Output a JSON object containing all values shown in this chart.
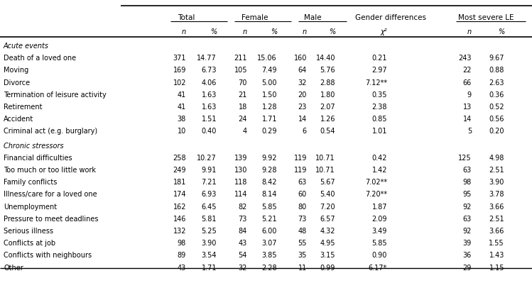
{
  "section1_label": "Acute events",
  "section2_label": "Chronic stressors",
  "group_headers": [
    "Total",
    "Female",
    "Male",
    "Gender differences",
    "Most severe LE"
  ],
  "sub_headers": [
    "n",
    "%",
    "n",
    "%",
    "n",
    "%",
    "χ²",
    "n",
    "%"
  ],
  "rows": [
    [
      "Death of a loved one",
      "371",
      "14.77",
      "211",
      "15.06",
      "160",
      "14.40",
      "0.21",
      "243",
      "9.67"
    ],
    [
      "Moving",
      "169",
      "6.73",
      "105",
      "7.49",
      "64",
      "5.76",
      "2.97",
      "22",
      "0.88"
    ],
    [
      "Divorce",
      "102",
      "4.06",
      "70",
      "5.00",
      "32",
      "2.88",
      "7.12**",
      "66",
      "2.63"
    ],
    [
      "Termination of leisure activity",
      "41",
      "1.63",
      "21",
      "1.50",
      "20",
      "1.80",
      "0.35",
      "9",
      "0.36"
    ],
    [
      "Retirement",
      "41",
      "1.63",
      "18",
      "1.28",
      "23",
      "2.07",
      "2.38",
      "13",
      "0.52"
    ],
    [
      "Accident",
      "38",
      "1.51",
      "24",
      "1.71",
      "14",
      "1.26",
      "0.85",
      "14",
      "0.56"
    ],
    [
      "Criminal act (e.g. burglary)",
      "10",
      "0.40",
      "4",
      "0.29",
      "6",
      "0.54",
      "1.01",
      "5",
      "0.20"
    ]
  ],
  "rows2": [
    [
      "Financial difficulties",
      "258",
      "10.27",
      "139",
      "9.92",
      "119",
      "10.71",
      "0.42",
      "125",
      "4.98"
    ],
    [
      "Too much or too little work",
      "249",
      "9.91",
      "130",
      "9.28",
      "119",
      "10.71",
      "1.42",
      "63",
      "2.51"
    ],
    [
      "Family conflicts",
      "181",
      "7.21",
      "118",
      "8.42",
      "63",
      "5.67",
      "7.02**",
      "98",
      "3.90"
    ],
    [
      "Illness/care for a loved one",
      "174",
      "6.93",
      "114",
      "8.14",
      "60",
      "5.40",
      "7.20**",
      "95",
      "3.78"
    ],
    [
      "Unemployment",
      "162",
      "6.45",
      "82",
      "5.85",
      "80",
      "7.20",
      "1.87",
      "92",
      "3.66"
    ],
    [
      "Pressure to meet deadlines",
      "146",
      "5.81",
      "73",
      "5.21",
      "73",
      "6.57",
      "2.09",
      "63",
      "2.51"
    ],
    [
      "Serious illness",
      "132",
      "5.25",
      "84",
      "6.00",
      "48",
      "4.32",
      "3.49",
      "92",
      "3.66"
    ],
    [
      "Conflicts at job",
      "98",
      "3.90",
      "43",
      "3.07",
      "55",
      "4.95",
      "5.85",
      "39",
      "1.55"
    ],
    [
      "Conflicts with neighbours",
      "89",
      "3.54",
      "54",
      "3.85",
      "35",
      "3.15",
      "0.90",
      "36",
      "1.43"
    ],
    [
      "Other",
      "43",
      "1.71",
      "32",
      "2.28",
      "11",
      "0.99",
      "6.17*",
      "29",
      "1.15"
    ]
  ],
  "background_color": "#ffffff",
  "text_color": "#000000",
  "font_size": 7.0,
  "header_font_size": 7.5
}
